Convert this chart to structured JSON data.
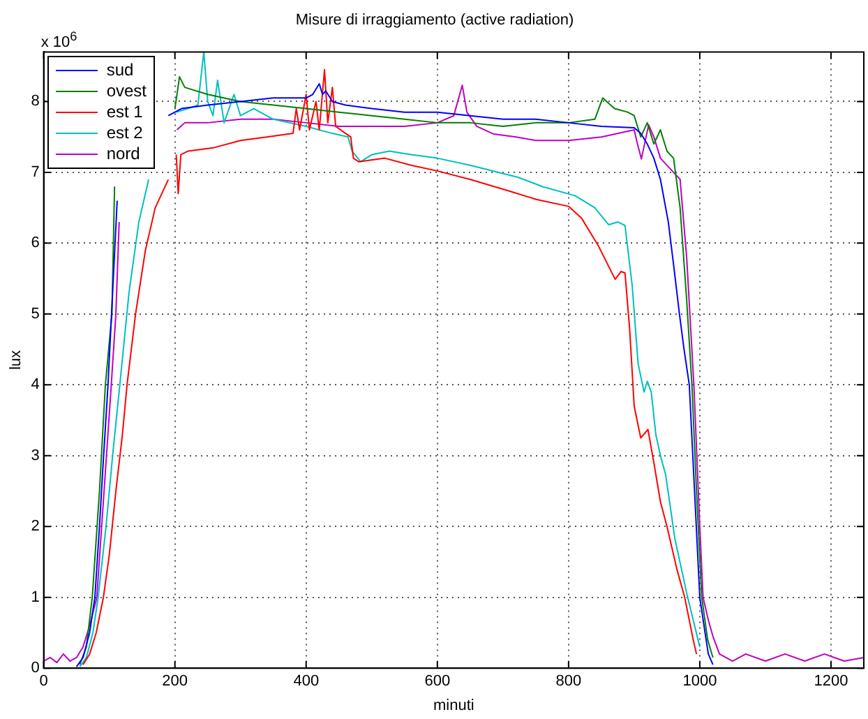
{
  "chart_data": {
    "type": "line",
    "title": "Misure di irraggiamento (active radiation)",
    "xlabel": "minuti",
    "ylabel": "lux",
    "annotations": [
      "x 10$^{6}$"
    ],
    "xlim": [
      0,
      1250
    ],
    "xticks": [
      0,
      200,
      400,
      600,
      800,
      1000,
      1200
    ],
    "ylim": [
      0,
      8.7
    ],
    "yticks": [
      0,
      1,
      2,
      3,
      4,
      5,
      6,
      7,
      8
    ],
    "grid": true,
    "legend": "top left",
    "marker": "none",
    "line_style": "solid",
    "series": [
      {
        "name": "sud",
        "color": "#0000ff",
        "x": [
          50,
          60,
          70,
          78,
          85,
          90,
          98,
          105,
          112,
          150,
          190,
          210,
          250,
          300,
          350,
          400,
          410,
          420,
          425,
          430,
          440,
          460,
          500,
          550,
          600,
          650,
          700,
          750,
          800,
          850,
          900,
          910,
          920,
          930,
          940,
          952,
          960,
          969,
          976,
          984,
          992,
          1000,
          1008,
          1013,
          1020
        ],
        "values": [
          0.02,
          0.15,
          0.5,
          1.0,
          2.0,
          2.8,
          4.0,
          5.3,
          6.6,
          null,
          7.8,
          7.9,
          7.95,
          8.0,
          8.05,
          8.05,
          8.1,
          8.25,
          8.1,
          8.15,
          8.0,
          7.95,
          7.9,
          7.85,
          7.85,
          7.8,
          7.75,
          7.75,
          7.7,
          7.65,
          7.63,
          7.55,
          7.4,
          7.2,
          6.9,
          6.3,
          5.7,
          5.0,
          4.5,
          4.0,
          2.5,
          1.0,
          0.5,
          0.2,
          0.05
        ]
      },
      {
        "name": "ovest",
        "color": "#008000",
        "x": [
          55,
          65,
          74,
          85,
          94,
          104,
          108,
          150,
          200,
          207,
          215,
          250,
          300,
          350,
          400,
          450,
          500,
          550,
          600,
          650,
          700,
          750,
          800,
          840,
          852,
          870,
          890,
          900,
          910,
          920,
          930,
          940,
          950,
          960,
          970,
          980,
          988,
          995,
          1003,
          1012,
          1020
        ],
        "values": [
          0.05,
          0.3,
          1.0,
          2.5,
          4.0,
          5.0,
          6.8,
          null,
          7.9,
          8.35,
          8.2,
          8.1,
          8.0,
          7.95,
          7.9,
          7.85,
          7.8,
          7.75,
          7.7,
          7.7,
          7.65,
          7.7,
          7.7,
          7.75,
          8.05,
          7.9,
          7.85,
          7.8,
          7.5,
          7.7,
          7.4,
          7.6,
          7.3,
          7.2,
          6.5,
          5.2,
          4.0,
          2.5,
          1.0,
          0.4,
          0.15
        ]
      },
      {
        "name": "est 1",
        "color": "#ff0000",
        "x": [
          60,
          70,
          80,
          91,
          100,
          110,
          120,
          127,
          140,
          155,
          170,
          190,
          197,
          202,
          205,
          209,
          220,
          260,
          300,
          340,
          380,
          385,
          390,
          400,
          405,
          415,
          420,
          428,
          433,
          440,
          445,
          460,
          468,
          472,
          480,
          520,
          560,
          600,
          650,
          708,
          750,
          800,
          820,
          845,
          871,
          880,
          886,
          893,
          900,
          910,
          921,
          930,
          940,
          950,
          965,
          977,
          990,
          995
        ],
        "values": [
          0.05,
          0.2,
          0.5,
          1.0,
          1.6,
          2.5,
          3.3,
          4.0,
          5.0,
          5.9,
          6.5,
          6.9,
          null,
          7.25,
          6.7,
          7.25,
          7.3,
          7.35,
          7.45,
          7.5,
          7.55,
          7.9,
          7.6,
          8.1,
          7.6,
          8.0,
          7.6,
          8.45,
          7.7,
          8.2,
          7.65,
          7.55,
          7.5,
          7.2,
          7.15,
          7.2,
          7.1,
          7.02,
          6.9,
          6.74,
          6.62,
          6.52,
          6.35,
          5.97,
          5.49,
          5.6,
          5.58,
          4.8,
          3.7,
          3.25,
          3.37,
          2.9,
          2.35,
          2.0,
          1.4,
          1.0,
          0.4,
          0.2
        ]
      },
      {
        "name": "est 2",
        "color": "#00bfbf",
        "x": [
          55,
          65,
          75,
          83,
          95,
          105,
          116,
          130,
          145,
          160,
          175,
          202,
          220,
          235,
          244,
          250,
          258,
          265,
          275,
          290,
          300,
          320,
          350,
          400,
          440,
          464,
          470,
          483,
          500,
          527,
          560,
          600,
          650,
          723,
          760,
          810,
          840,
          861,
          875,
          886,
          897,
          906,
          915,
          920,
          926,
          933,
          940,
          948,
          962,
          980,
          1000
        ],
        "values": [
          0.02,
          0.15,
          0.5,
          1.0,
          2.0,
          3.0,
          4.0,
          5.3,
          6.3,
          6.9,
          null,
          7.85,
          7.9,
          7.95,
          8.7,
          8.0,
          7.8,
          8.3,
          7.7,
          8.1,
          7.8,
          7.9,
          7.75,
          7.65,
          7.55,
          7.5,
          7.3,
          7.15,
          7.25,
          7.3,
          7.25,
          7.2,
          7.1,
          6.93,
          6.8,
          6.67,
          6.5,
          6.26,
          6.3,
          6.25,
          5.4,
          4.3,
          3.9,
          4.05,
          3.9,
          3.3,
          3.0,
          2.73,
          1.83,
          1.06,
          0.3
        ]
      },
      {
        "name": "nord",
        "color": "#bf00bf",
        "x": [
          0,
          10,
          20,
          30,
          40,
          50,
          60,
          70,
          81,
          92,
          103,
          110,
          115,
          150,
          203,
          215,
          250,
          300,
          350,
          400,
          450,
          500,
          550,
          600,
          625,
          638,
          645,
          660,
          686,
          720,
          750,
          800,
          850,
          900,
          905,
          911,
          922,
          930,
          940,
          955,
          970,
          980,
          991,
          1000,
          1005,
          1013,
          1020,
          1030,
          1050,
          1070,
          1100,
          1130,
          1160,
          1190,
          1220,
          1250
        ],
        "values": [
          0.1,
          0.15,
          0.08,
          0.2,
          0.1,
          0.15,
          0.3,
          0.6,
          1.0,
          2.5,
          4.0,
          5.0,
          6.3,
          null,
          7.6,
          7.7,
          7.7,
          7.75,
          7.75,
          7.7,
          7.65,
          7.65,
          7.65,
          7.7,
          7.8,
          8.23,
          7.85,
          7.65,
          7.54,
          7.5,
          7.45,
          7.45,
          7.5,
          7.6,
          7.4,
          7.19,
          7.67,
          7.5,
          7.2,
          7.05,
          6.9,
          5.8,
          4.0,
          2.0,
          1.0,
          0.68,
          0.45,
          0.2,
          0.1,
          0.2,
          0.1,
          0.2,
          0.1,
          0.2,
          0.1,
          0.15
        ]
      }
    ]
  }
}
